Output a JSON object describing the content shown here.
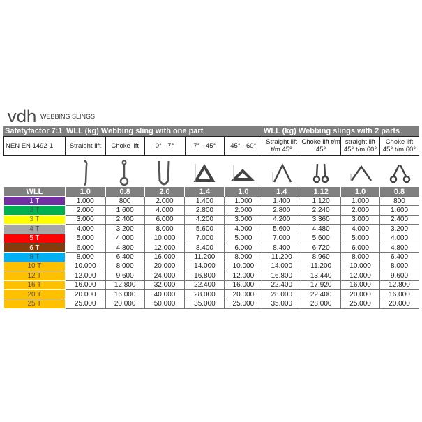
{
  "logo": "vdh",
  "title": "WEBBING SLINGS",
  "header": {
    "left": "Safetyfactor 7:1",
    "one_part": "WLL (kg) Webbing sling with one part",
    "two_parts": "WLL (kg) Webbing slings with 2 parts"
  },
  "subheader": [
    "NEN EN 1492-1",
    "Straight lift",
    "Choke lift",
    "0° - 7°",
    "7° - 45°",
    "45° - 60°",
    "Straight lift t/m 45°",
    "Choke lift t/m 45°",
    "straight lift 45° t/m 60°",
    "Choke lift 45° t/m 60°"
  ],
  "icons": [
    "straight-sling-icon",
    "choke-sling-icon",
    "u-sling-icon",
    "basket-sling-7-45-icon",
    "basket-sling-45-60-icon",
    "two-leg-straight-45-icon",
    "two-leg-choke-45-icon",
    "two-leg-straight-60-icon",
    "two-leg-choke-60-icon"
  ],
  "factor_row": [
    "WLL",
    "1.0",
    "0.8",
    "2.0",
    "1.4",
    "1.0",
    "1.4",
    "1.12",
    "1.0",
    "0.8"
  ],
  "rows": [
    {
      "label": "1 T",
      "color": "#7030a0",
      "values": [
        "1.000",
        "800",
        "2.000",
        "1.400",
        "1.000",
        "1.400",
        "1.120",
        "1.000",
        "800"
      ]
    },
    {
      "label": "2 T",
      "color": "#00b050",
      "values": [
        "2.000",
        "1.600",
        "4.000",
        "2.800",
        "2.000",
        "2.800",
        "2.240",
        "2.000",
        "1.600"
      ]
    },
    {
      "label": "3 T",
      "color": "#ffff00",
      "values": [
        "3.000",
        "2.400",
        "6.000",
        "4.200",
        "3.000",
        "4.200",
        "3.360",
        "3.000",
        "2.400"
      ]
    },
    {
      "label": "4 T",
      "color": "#a6a6a6",
      "values": [
        "4.000",
        "3.200",
        "8.000",
        "5.600",
        "4.000",
        "5.600",
        "4.480",
        "4.000",
        "3.200"
      ]
    },
    {
      "label": "5 T",
      "color": "#ff0000",
      "values": [
        "5.000",
        "4.000",
        "10.000",
        "7.000",
        "5.000",
        "7.000",
        "5.600",
        "5.000",
        "4.000"
      ]
    },
    {
      "label": "6 T",
      "color": "#843c0c",
      "values": [
        "6.000",
        "4.800",
        "12.000",
        "8.400",
        "6.000",
        "8.400",
        "6.720",
        "6.000",
        "4.800"
      ]
    },
    {
      "label": "8 T",
      "color": "#00b0f0",
      "values": [
        "8.000",
        "6.400",
        "16.000",
        "11.200",
        "8.000",
        "11.200",
        "8.960",
        "8.000",
        "6.400"
      ]
    },
    {
      "label": "10 T",
      "color": "#ffc000",
      "values": [
        "10.000",
        "8.000",
        "20.000",
        "14.000",
        "10.000",
        "14.000",
        "11.200",
        "10.000",
        "8.000"
      ]
    },
    {
      "label": "12 T",
      "color": "#ffc000",
      "values": [
        "12.000",
        "9.600",
        "24.000",
        "16.800",
        "12.000",
        "16.800",
        "13.440",
        "12.000",
        "9.600"
      ]
    },
    {
      "label": "16 T",
      "color": "#ffc000",
      "values": [
        "16.000",
        "12.800",
        "32.000",
        "22.400",
        "16.000",
        "22.400",
        "17.920",
        "16.000",
        "12.800"
      ]
    },
    {
      "label": "20 T",
      "color": "#ffc000",
      "values": [
        "20.000",
        "16.000",
        "40.000",
        "28.000",
        "20.000",
        "28.000",
        "22.400",
        "20.000",
        "16.000"
      ]
    },
    {
      "label": "25 T",
      "color": "#ffc000",
      "values": [
        "25.000",
        "20.000",
        "50.000",
        "35.000",
        "25.000",
        "35.000",
        "28.000",
        "25.000",
        "20.000"
      ]
    }
  ]
}
